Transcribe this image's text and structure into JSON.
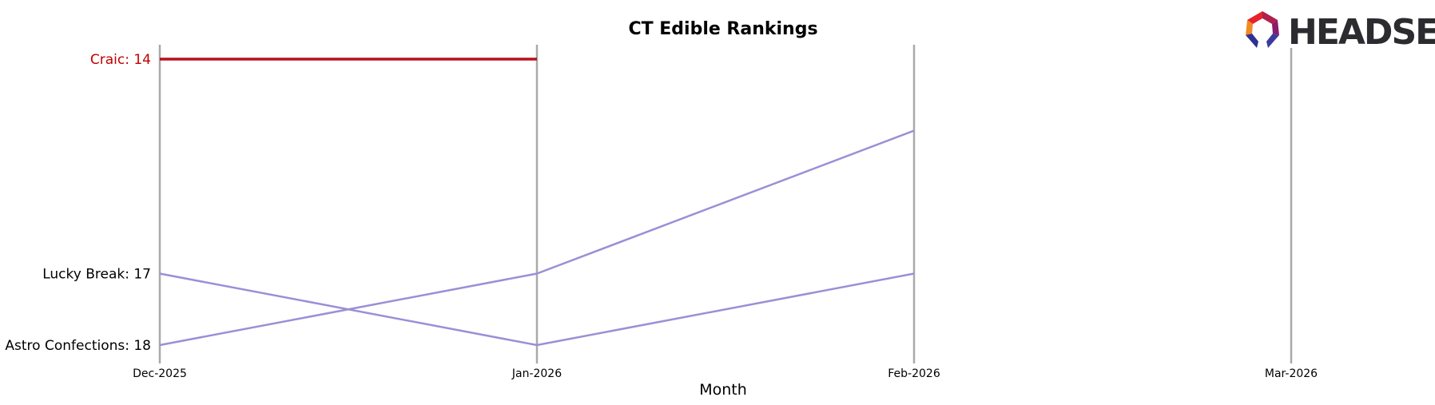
{
  "chart_data": {
    "type": "line",
    "title": "CT Edible Rankings",
    "xlabel": "Month",
    "ylabel": "",
    "categories": [
      "Dec-2025",
      "Jan-2026",
      "Feb-2026",
      "Mar-2026"
    ],
    "ylim": [
      18,
      14
    ],
    "y_inverted": true,
    "grid": "vertical",
    "series": [
      {
        "name": "Craic",
        "values": [
          14,
          14,
          null,
          null
        ],
        "color": "#b5121b",
        "highlight": true
      },
      {
        "name": "Lucky Break",
        "values": [
          17,
          18,
          17,
          null
        ],
        "color": "#9b8fd6"
      },
      {
        "name": "Astro Confections",
        "values": [
          18,
          17,
          15,
          null
        ],
        "color": "#9b8fd6"
      }
    ],
    "rank_labels": [
      {
        "text": "Craic: 14",
        "rank": 14,
        "color": "#c00000"
      },
      {
        "text": "Lucky Break: 17",
        "rank": 17,
        "color": "#000000"
      },
      {
        "text": "Astro Confections: 18",
        "rank": 18,
        "color": "#000000"
      }
    ]
  },
  "logo": {
    "text": "HEADSET",
    "icon": "headset-hexagon-logo-icon",
    "colors": [
      "#e5232e",
      "#b21e4b",
      "#8a1a6a",
      "#f08a24",
      "#2e3192",
      "#4a3d9b"
    ]
  }
}
